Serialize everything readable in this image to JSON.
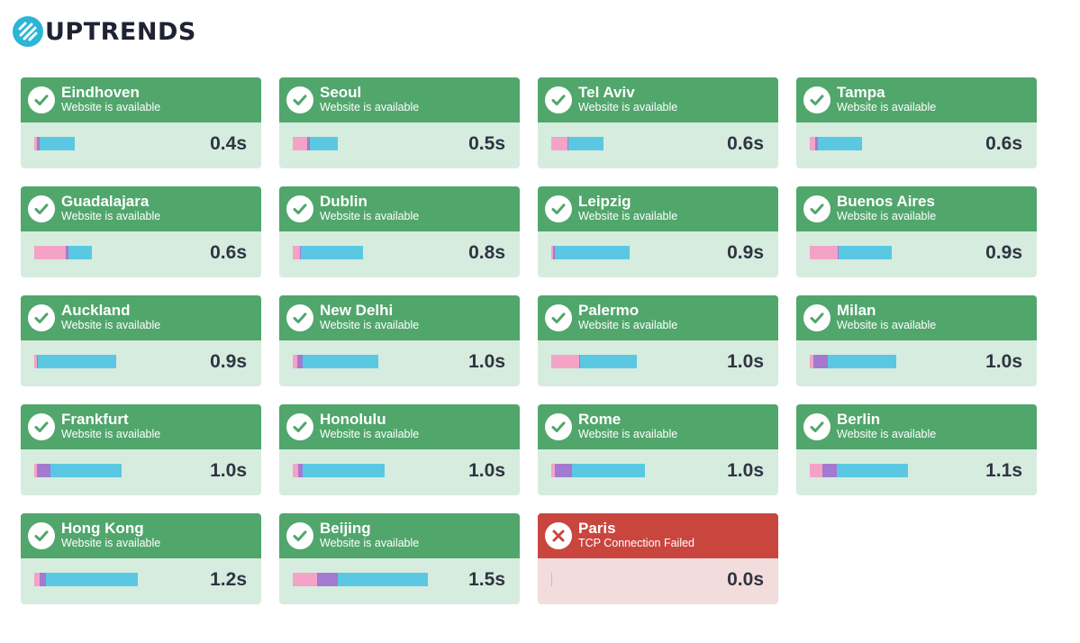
{
  "brand": {
    "name": "UPTRENDS",
    "logo_icon": "uptrends-logo-icon",
    "accent": "#2bb5d6"
  },
  "colors": {
    "ok_header": "#51a66c",
    "ok_body": "#d5ecde",
    "fail_header": "#c9463f",
    "fail_body": "#f2dcdc",
    "dns": "#f4a3c6",
    "connect": "#a37ad0",
    "download": "#5ac8e2"
  },
  "checkpoints": [
    {
      "city": "Eindhoven",
      "status": "Website is available",
      "ok": true,
      "time": "0.4s",
      "segments": [
        0.003,
        0.003,
        0.039
      ]
    },
    {
      "city": "Seoul",
      "status": "Website is available",
      "ok": true,
      "time": "0.5s",
      "segments": [
        0.016,
        0.003,
        0.031
      ]
    },
    {
      "city": "Tel Aviv",
      "status": "Website is available",
      "ok": true,
      "time": "0.6s",
      "segments": [
        0.018,
        0.001,
        0.039
      ]
    },
    {
      "city": "Tampa",
      "status": "Website is available",
      "ok": true,
      "time": "0.6s",
      "segments": [
        0.006,
        0.003,
        0.049
      ]
    },
    {
      "city": "Guadalajara",
      "status": "Website is available",
      "ok": true,
      "time": "0.6s",
      "segments": [
        0.035,
        0.003,
        0.026
      ]
    },
    {
      "city": "Dublin",
      "status": "Website is available",
      "ok": true,
      "time": "0.8s",
      "segments": [
        0.008,
        0.001,
        0.069
      ]
    },
    {
      "city": "Leipzig",
      "status": "Website is available",
      "ok": true,
      "time": "0.9s",
      "segments": [
        0.002,
        0.002,
        0.083
      ]
    },
    {
      "city": "Buenos Aires",
      "status": "Website is available",
      "ok": true,
      "time": "0.9s",
      "segments": [
        0.031,
        0.001,
        0.059
      ]
    },
    {
      "city": "Auckland",
      "status": "Website is available",
      "ok": true,
      "time": "0.9s",
      "segments": [
        0.003,
        0.001,
        0.087
      ]
    },
    {
      "city": "New Delhi",
      "status": "Website is available",
      "ok": true,
      "time": "1.0s",
      "segments": [
        0.005,
        0.006,
        0.084
      ]
    },
    {
      "city": "Palermo",
      "status": "Website is available",
      "ok": true,
      "time": "1.0s",
      "segments": [
        0.031,
        0.001,
        0.063
      ]
    },
    {
      "city": "Milan",
      "status": "Website is available",
      "ok": true,
      "time": "1.0s",
      "segments": [
        0.004,
        0.016,
        0.076
      ]
    },
    {
      "city": "Frankfurt",
      "status": "Website is available",
      "ok": true,
      "time": "1.0s",
      "segments": [
        0.003,
        0.015,
        0.079
      ]
    },
    {
      "city": "Honolulu",
      "status": "Website is available",
      "ok": true,
      "time": "1.0s",
      "segments": [
        0.006,
        0.005,
        0.091
      ]
    },
    {
      "city": "Rome",
      "status": "Website is available",
      "ok": true,
      "time": "1.0s",
      "segments": [
        0.004,
        0.019,
        0.081
      ]
    },
    {
      "city": "Berlin",
      "status": "Website is available",
      "ok": true,
      "time": "1.1s",
      "segments": [
        0.014,
        0.016,
        0.079
      ]
    },
    {
      "city": "Hong Kong",
      "status": "Website is available",
      "ok": true,
      "time": "1.2s",
      "segments": [
        0.006,
        0.007,
        0.102
      ]
    },
    {
      "city": "Beijing",
      "status": "Website is available",
      "ok": true,
      "time": "1.5s",
      "segments": [
        0.027,
        0.023,
        0.1
      ]
    },
    {
      "city": "Paris",
      "status": "TCP Connection Failed",
      "ok": false,
      "time": "0.0s",
      "segments": [
        0.001,
        0,
        0
      ]
    }
  ]
}
